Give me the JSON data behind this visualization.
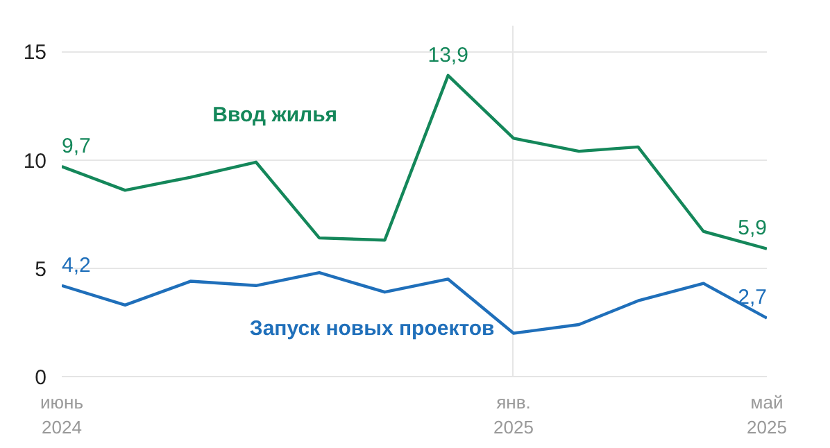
{
  "chart_data": {
    "type": "line",
    "x": [
      "2024-06",
      "2024-07",
      "2024-08",
      "2024-09",
      "2024-10",
      "2024-11",
      "2024-12",
      "2025-01",
      "2025-02",
      "2025-03",
      "2025-04",
      "2025-05"
    ],
    "series": [
      {
        "name": "Ввод жилья",
        "color": "#14875a",
        "values": [
          9.7,
          8.6,
          9.2,
          9.9,
          6.4,
          6.3,
          13.9,
          11.0,
          10.4,
          10.6,
          6.7,
          5.9
        ],
        "value_labels": [
          "9,7",
          null,
          null,
          null,
          null,
          null,
          "13,9",
          null,
          null,
          null,
          null,
          "5,9"
        ]
      },
      {
        "name": "Запуск новых проектов",
        "color": "#1f6fba",
        "values": [
          4.2,
          3.3,
          4.4,
          4.2,
          4.8,
          3.9,
          4.5,
          2.0,
          2.4,
          3.5,
          4.3,
          2.7
        ],
        "value_labels": [
          "4,2",
          null,
          null,
          null,
          null,
          null,
          null,
          null,
          null,
          null,
          null,
          "2,7"
        ]
      }
    ],
    "ylim": [
      0,
      16.2
    ],
    "yticks": [
      0,
      5,
      10,
      15
    ],
    "xlim": [
      "2024-06",
      "2025-05"
    ],
    "xticks": [
      {
        "value": "2024-06",
        "label": "июнь\n2024"
      },
      {
        "value": "2025-01",
        "label": "янв.\n2025"
      },
      {
        "value": "2025-05",
        "label": "май\n2025"
      }
    ],
    "grid": true,
    "legend": false,
    "marker": "none",
    "line_style": "solid"
  }
}
